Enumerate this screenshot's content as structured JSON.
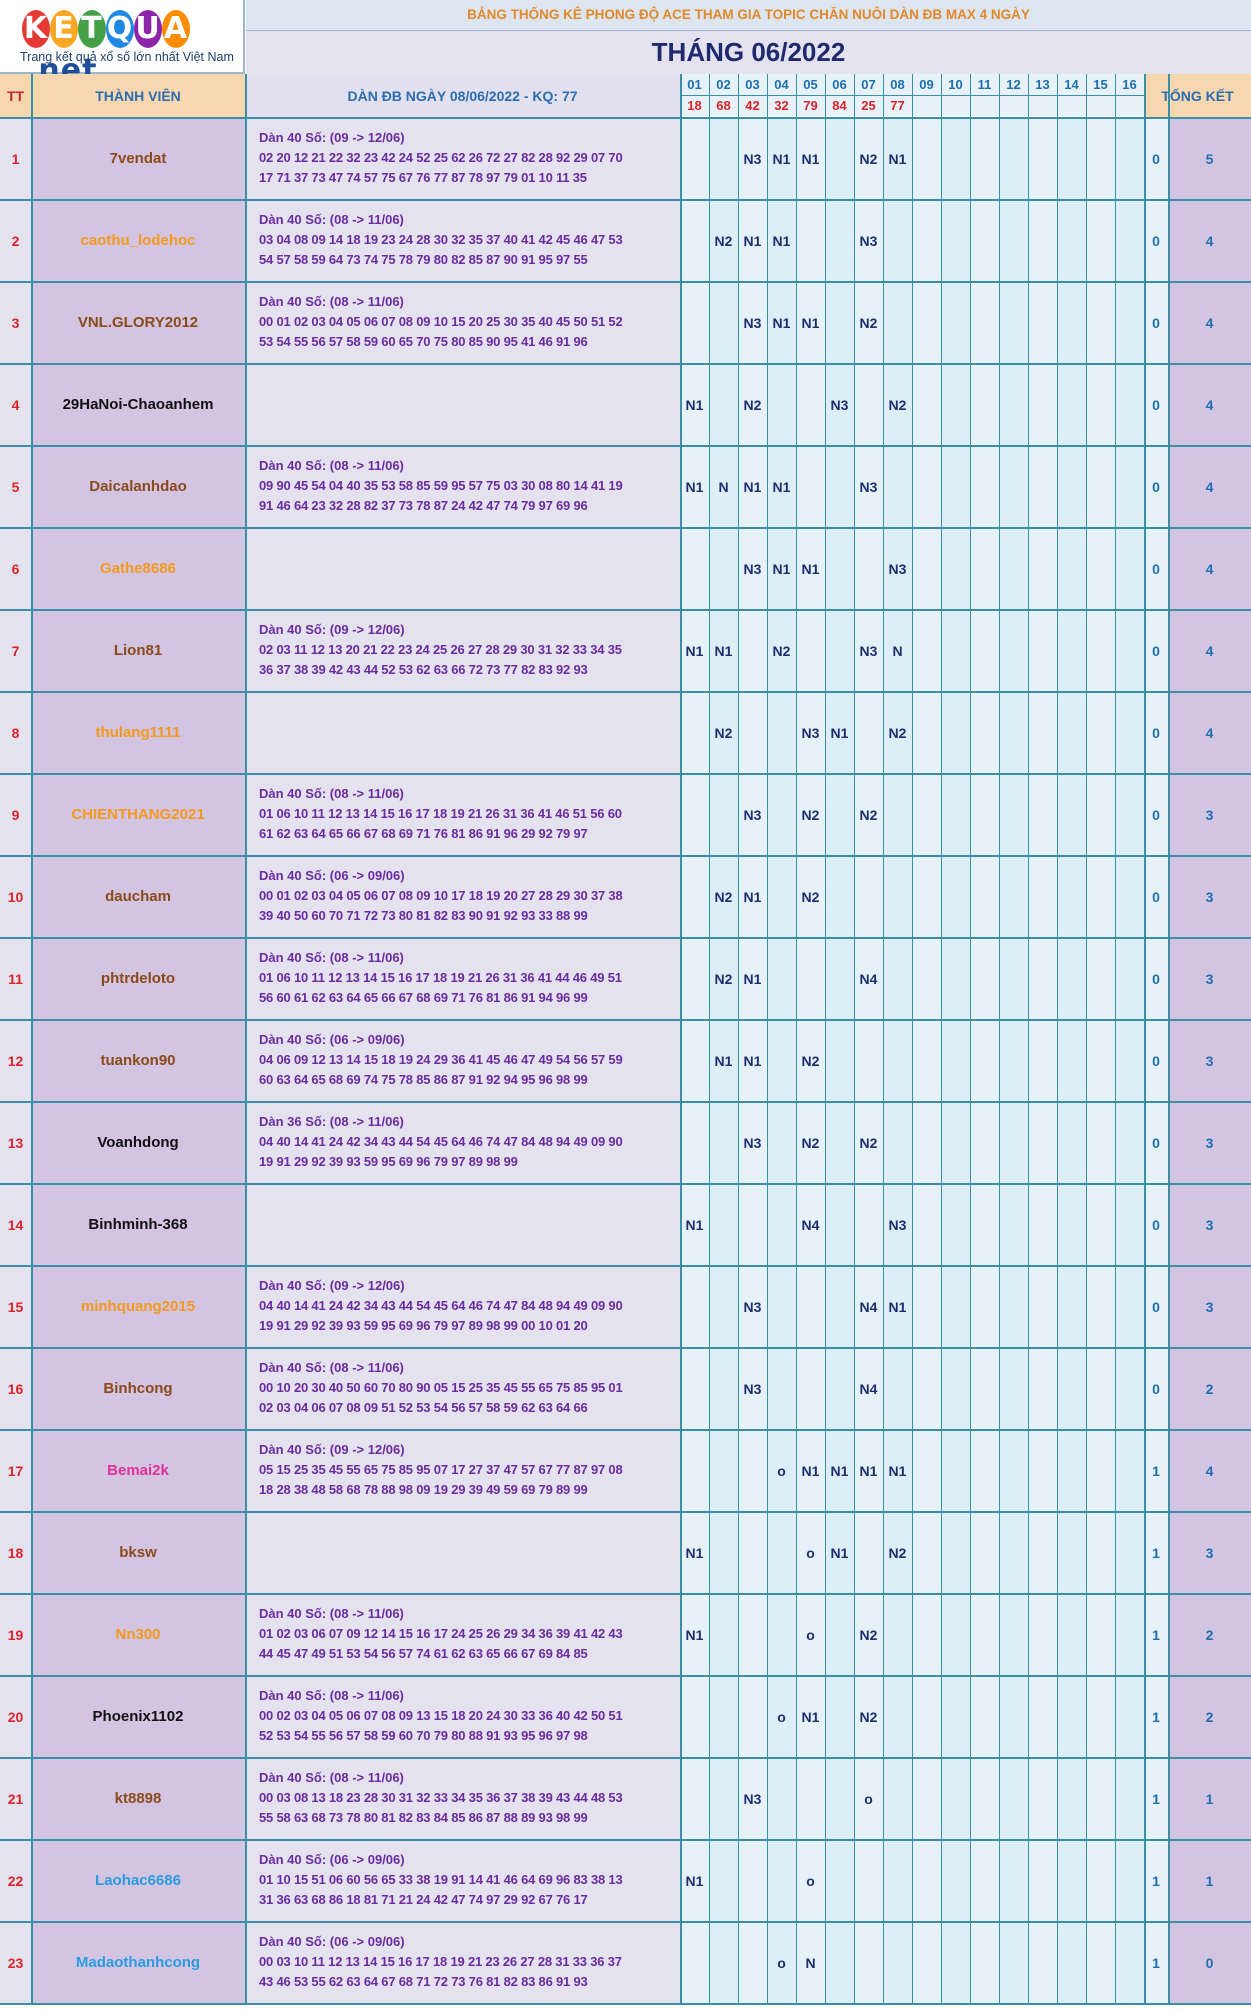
{
  "logo": {
    "letters": [
      "K",
      "E",
      "T",
      "Q",
      "U",
      "A"
    ],
    "colors": [
      "#e53935",
      "#f9a825",
      "#43a047",
      "#1e88e5",
      "#8e24aa",
      "#fb8c00"
    ],
    "suffix": ".net",
    "tagline": "Trang kết quả xổ số lớn nhất Việt Nam"
  },
  "header": {
    "title": "BẢNG THỐNG KÊ PHONG ĐỘ ACE THAM GIA TOPIC CHĂN NUÔI DÀN ĐB MAX 4 NGÀY",
    "month": "THÁNG 06/2022",
    "col_tt": "TT",
    "col_member": "THÀNH VIÊN",
    "col_dan": "DÀN ĐB NGÀY 08/06/2022 - KQ: 77",
    "col_summary": "TỔNG KẾT",
    "days": [
      "01",
      "02",
      "03",
      "04",
      "05",
      "06",
      "07",
      "08",
      "09",
      "10",
      "11",
      "12",
      "13",
      "14",
      "15",
      "16"
    ],
    "results": [
      "18",
      "68",
      "42",
      "32",
      "79",
      "84",
      "25",
      "77",
      "",
      "",
      "",
      "",
      "",
      "",
      "",
      ""
    ]
  },
  "rows": [
    {
      "tt": "1",
      "name": "7vendat",
      "color": "#8a4a1a",
      "dan": [
        "Dàn 40 Số: (09 -> 12/06)",
        "02 20 12 21 22 32 23 42 24 52 25 62 26 72 27 82 28 92 29 07 70",
        "17 71 37 73 47 74 57 75 67 76 77 87 78 97 79 01 10 11 35"
      ],
      "days": [
        "",
        "",
        "N3",
        "N1",
        "N1",
        "",
        "N2",
        "N1",
        "",
        "",
        "",
        "",
        "",
        "",
        "",
        ""
      ],
      "z": "0",
      "total": "5"
    },
    {
      "tt": "2",
      "name": "caothu_lodehoc",
      "color": "#f39a1e",
      "dan": [
        "Dàn 40 Số: (08 -> 11/06)",
        "03 04 08 09 14 18 19 23 24 28 30 32 35 37 40 41 42 45 46 47 53",
        "54 57 58 59 64 73 74 75 78 79 80 82 85 87 90 91 95 97 55"
      ],
      "days": [
        "",
        "N2",
        "N1",
        "N1",
        "",
        "",
        "N3",
        "",
        "",
        "",
        "",
        "",
        "",
        "",
        "",
        ""
      ],
      "z": "0",
      "total": "4"
    },
    {
      "tt": "3",
      "name": "VNL.GLORY2012",
      "color": "#8a4a1a",
      "dan": [
        "Dàn 40 Số: (08 -> 11/06)",
        "00 01 02 03 04 05 06 07 08 09 10 15 20 25 30 35 40 45 50 51 52",
        "53 54 55 56 57 58 59 60 65 70 75 80 85 90 95 41 46 91 96"
      ],
      "days": [
        "",
        "",
        "N3",
        "N1",
        "N1",
        "",
        "N2",
        "",
        "",
        "",
        "",
        "",
        "",
        "",
        "",
        ""
      ],
      "z": "0",
      "total": "4"
    },
    {
      "tt": "4",
      "name": "29HaNoi-Chaoanhem",
      "color": "#111111",
      "dan": [
        "",
        "",
        ""
      ],
      "days": [
        "N1",
        "",
        "N2",
        "",
        "",
        "N3",
        "",
        "N2",
        "",
        "",
        "",
        "",
        "",
        "",
        "",
        ""
      ],
      "z": "0",
      "total": "4"
    },
    {
      "tt": "5",
      "name": "Daicalanhdao",
      "color": "#8a4a1a",
      "dan": [
        "Dàn 40 Số: (08 -> 11/06)",
        "09 90 45 54 04 40 35 53 58 85 59 95 57 75 03 30 08 80 14 41 19",
        "91 46 64 23 32 28 82 37 73 78 87 24 42 47 74 79 97 69 96"
      ],
      "days": [
        "N1",
        "N",
        "N1",
        "N1",
        "",
        "",
        "N3",
        "",
        "",
        "",
        "",
        "",
        "",
        "",
        "",
        ""
      ],
      "z": "0",
      "total": "4"
    },
    {
      "tt": "6",
      "name": "Gathe8686",
      "color": "#f39a1e",
      "dan": [
        "",
        "",
        ""
      ],
      "days": [
        "",
        "",
        "N3",
        "N1",
        "N1",
        "",
        "",
        "N3",
        "",
        "",
        "",
        "",
        "",
        "",
        "",
        ""
      ],
      "z": "0",
      "total": "4"
    },
    {
      "tt": "7",
      "name": "Lion81",
      "color": "#8a4a1a",
      "dan": [
        "Dàn 40 Số: (09 -> 12/06)",
        "02 03 11 12 13 20 21 22 23 24 25 26 27 28 29 30 31 32 33 34 35",
        "36 37 38 39 42 43 44 52 53 62 63 66 72 73 77 82 83 92 93"
      ],
      "days": [
        "N1",
        "N1",
        "",
        "N2",
        "",
        "",
        "N3",
        "N",
        "",
        "",
        "",
        "",
        "",
        "",
        "",
        ""
      ],
      "z": "0",
      "total": "4"
    },
    {
      "tt": "8",
      "name": "thulang1111",
      "color": "#f39a1e",
      "dan": [
        "",
        "",
        ""
      ],
      "days": [
        "",
        "N2",
        "",
        "",
        "N3",
        "N1",
        "",
        "N2",
        "",
        "",
        "",
        "",
        "",
        "",
        "",
        ""
      ],
      "z": "0",
      "total": "4"
    },
    {
      "tt": "9",
      "name": "CHIENTHANG2021",
      "color": "#f39a1e",
      "dan": [
        "Dàn 40 Số: (08 -> 11/06)",
        "01 06 10 11 12 13 14 15 16 17 18 19 21 26 31 36 41 46 51 56 60",
        "61 62 63 64 65 66 67 68 69 71 76 81 86 91 96 29 92 79 97"
      ],
      "days": [
        "",
        "",
        "N3",
        "",
        "N2",
        "",
        "N2",
        "",
        "",
        "",
        "",
        "",
        "",
        "",
        "",
        ""
      ],
      "z": "0",
      "total": "3"
    },
    {
      "tt": "10",
      "name": "daucham",
      "color": "#8a4a1a",
      "dan": [
        "Dàn 40 Số: (06 -> 09/06)",
        "00 01 02 03 04 05 06 07 08 09 10 17 18 19 20 27 28 29 30 37 38",
        "39 40 50 60 70 71 72 73 80 81 82 83 90 91 92 93 33 88 99"
      ],
      "days": [
        "",
        "N2",
        "N1",
        "",
        "N2",
        "",
        "",
        "",
        "",
        "",
        "",
        "",
        "",
        "",
        "",
        ""
      ],
      "z": "0",
      "total": "3"
    },
    {
      "tt": "11",
      "name": "phtrdeloto",
      "color": "#8a4a1a",
      "dan": [
        "Dàn 40 Số: (08 -> 11/06)",
        "01 06 10 11 12 13 14 15 16 17 18 19 21 26 31 36 41 44 46 49 51",
        "56 60 61 62 63 64 65 66 67 68 69 71 76 81 86 91 94 96 99"
      ],
      "days": [
        "",
        "N2",
        "N1",
        "",
        "",
        "",
        "N4",
        "",
        "",
        "",
        "",
        "",
        "",
        "",
        "",
        ""
      ],
      "z": "0",
      "total": "3"
    },
    {
      "tt": "12",
      "name": "tuankon90",
      "color": "#8a4a1a",
      "dan": [
        "Dàn 40 Số: (06 -> 09/06)",
        "04 06 09 12 13 14 15 18 19 24 29 36 41 45 46 47 49 54 56 57 59",
        "60 63 64 65 68 69 74 75 78 85 86 87 91 92 94 95 96 98 99"
      ],
      "days": [
        "",
        "N1",
        "N1",
        "",
        "N2",
        "",
        "",
        "",
        "",
        "",
        "",
        "",
        "",
        "",
        "",
        ""
      ],
      "z": "0",
      "total": "3"
    },
    {
      "tt": "13",
      "name": "Voanhdong",
      "color": "#111111",
      "dan": [
        "Dàn 36 Số: (08 -> 11/06)",
        "04 40 14 41 24 42 34 43 44 54 45 64 46 74 47 84 48 94 49 09 90",
        "19 91 29 92 39 93 59 95 69 96 79 97 89 98 99"
      ],
      "days": [
        "",
        "",
        "N3",
        "",
        "N2",
        "",
        "N2",
        "",
        "",
        "",
        "",
        "",
        "",
        "",
        "",
        ""
      ],
      "z": "0",
      "total": "3"
    },
    {
      "tt": "14",
      "name": "Binhminh-368",
      "color": "#111111",
      "dan": [
        "",
        "",
        ""
      ],
      "days": [
        "N1",
        "",
        "",
        "",
        "N4",
        "",
        "",
        "N3",
        "",
        "",
        "",
        "",
        "",
        "",
        "",
        ""
      ],
      "z": "0",
      "total": "3"
    },
    {
      "tt": "15",
      "name": "minhquang2015",
      "color": "#f39a1e",
      "dan": [
        "Dàn 40 Số: (09 -> 12/06)",
        "04 40 14 41 24 42 34 43 44 54 45 64 46 74 47 84 48 94 49 09 90",
        "19 91 29 92 39 93 59 95 69 96 79 97 89 98 99 00 10 01 20"
      ],
      "days": [
        "",
        "",
        "N3",
        "",
        "",
        "",
        "N4",
        "N1",
        "",
        "",
        "",
        "",
        "",
        "",
        "",
        ""
      ],
      "z": "0",
      "total": "3"
    },
    {
      "tt": "16",
      "name": "Binhcong",
      "color": "#8a4a1a",
      "dan": [
        "Dàn 40 Số: (08 -> 11/06)",
        "00 10 20 30 40 50 60 70 80 90 05 15 25 35 45 55 65 75 85 95 01",
        "02 03 04 06 07 08 09 51 52 53 54 56 57 58 59 62 63 64 66"
      ],
      "days": [
        "",
        "",
        "N3",
        "",
        "",
        "",
        "N4",
        "",
        "",
        "",
        "",
        "",
        "",
        "",
        "",
        ""
      ],
      "z": "0",
      "total": "2"
    },
    {
      "tt": "17",
      "name": "Bemai2k",
      "color": "#e0309a",
      "dan": [
        "Dàn 40 Số: (09 -> 12/06)",
        "05 15 25 35 45 55 65 75 85 95 07 17 27 37 47 57 67 77 87 97 08",
        "18 28 38 48 58 68 78 88 98 09 19 29 39 49 59 69 79 89 99"
      ],
      "days": [
        "",
        "",
        "",
        "o",
        "N1",
        "N1",
        "N1",
        "N1",
        "",
        "",
        "",
        "",
        "",
        "",
        "",
        ""
      ],
      "z": "1",
      "total": "4"
    },
    {
      "tt": "18",
      "name": "bksw",
      "color": "#8a4a1a",
      "dan": [
        "",
        "",
        ""
      ],
      "days": [
        "N1",
        "",
        "",
        "",
        "o",
        "N1",
        "",
        "N2",
        "",
        "",
        "",
        "",
        "",
        "",
        "",
        ""
      ],
      "z": "1",
      "total": "3"
    },
    {
      "tt": "19",
      "name": "Nn300",
      "color": "#f39a1e",
      "dan": [
        "Dàn 40 Số: (08 -> 11/06)",
        "01 02 03 06 07 09 12 14 15 16 17 24 25 26 29 34 36 39 41 42 43",
        "44 45 47 49 51 53 54 56 57 74 61 62 63 65 66 67 69 84 85"
      ],
      "days": [
        "N1",
        "",
        "",
        "",
        "o",
        "",
        "N2",
        "",
        "",
        "",
        "",
        "",
        "",
        "",
        "",
        ""
      ],
      "z": "1",
      "total": "2"
    },
    {
      "tt": "20",
      "name": "Phoenix1102",
      "color": "#111111",
      "dan": [
        "Dàn 40 Số: (08 -> 11/06)",
        "00 02 03 04 05 06 07 08 09 13 15 18 20 24 30 33 36 40 42 50 51",
        "52 53 54 55 56 57 58 59 60 70 79 80 88 91 93 95 96 97 98"
      ],
      "days": [
        "",
        "",
        "",
        "o",
        "N1",
        "",
        "N2",
        "",
        "",
        "",
        "",
        "",
        "",
        "",
        "",
        ""
      ],
      "z": "1",
      "total": "2"
    },
    {
      "tt": "21",
      "name": "kt8898",
      "color": "#8a4a1a",
      "dan": [
        "Dàn 40 Số: (08 -> 11/06)",
        "00 03 08 13 18 23 28 30 31 32 33 34 35 36 37 38 39 43 44 48 53",
        "55 58 63 68 73 78 80 81 82 83 84 85 86 87 88 89 93 98 99"
      ],
      "days": [
        "",
        "",
        "N3",
        "",
        "",
        "",
        "o",
        "",
        "",
        "",
        "",
        "",
        "",
        "",
        "",
        ""
      ],
      "z": "1",
      "total": "1"
    },
    {
      "tt": "22",
      "name": "Laohac6686",
      "color": "#2a9be0",
      "dan": [
        "Dàn 40 Số: (06 -> 09/06)",
        "01 10 15 51 06 60 56 65 33 38 19 91 14 41 46 64 69 96 83 38 13",
        "31 36 63 68 86 18 81 71 21 24 42 47 74 97 29 92 67 76 17"
      ],
      "days": [
        "N1",
        "",
        "",
        "",
        "o",
        "",
        "",
        "",
        "",
        "",
        "",
        "",
        "",
        "",
        "",
        ""
      ],
      "z": "1",
      "total": "1"
    },
    {
      "tt": "23",
      "name": "Madaothanhcong",
      "color": "#2a9be0",
      "dan": [
        "Dàn 40 Số: (06 -> 09/06)",
        "00 03 10 11 12 13 14 15 16 17 18 19 21 23 26 27 28 31 33 36 37",
        "43 46 53 55 62 63 64 67 68 71 72 73 76 81 82 83 86 91 93"
      ],
      "days": [
        "",
        "",
        "",
        "o",
        "N",
        "",
        "",
        "",
        "",
        "",
        "",
        "",
        "",
        "",
        "",
        ""
      ],
      "z": "1",
      "total": "0"
    }
  ]
}
